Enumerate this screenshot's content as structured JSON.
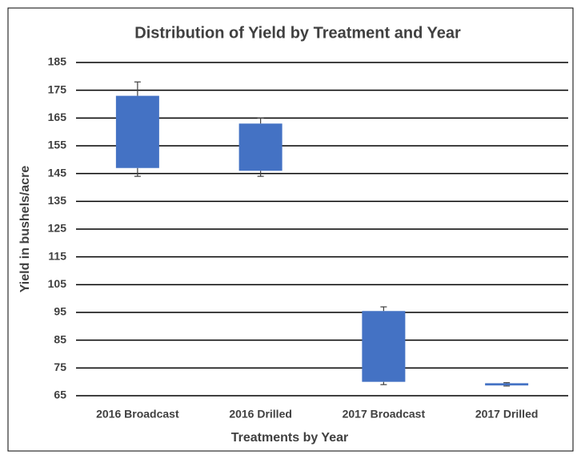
{
  "chart_data": {
    "type": "box",
    "title": "Distribution of Yield by Treatment and Year",
    "x_label": "Treatments by Year",
    "y_label": "Yield in bushels/acre",
    "categories": [
      "2016 Broadcast",
      "2016 Drilled",
      "2017 Broadcast",
      "2017 Drilled"
    ],
    "color": "#4472c4",
    "boxes": [
      {
        "min": 144,
        "q1": 147,
        "q3": 173,
        "max": 178
      },
      {
        "min": 144,
        "q1": 146,
        "q3": 163,
        "max": 165
      },
      {
        "min": 69,
        "q1": 70,
        "q3": 95.5,
        "max": 97
      },
      {
        "min": 68.5,
        "q1": 68.7,
        "q3": 69.5,
        "max": 69.7
      }
    ],
    "ylim": [
      65,
      185
    ],
    "yticks": [
      65,
      75,
      85,
      95,
      105,
      115,
      125,
      135,
      145,
      155,
      165,
      175,
      185
    ],
    "grid": true
  }
}
